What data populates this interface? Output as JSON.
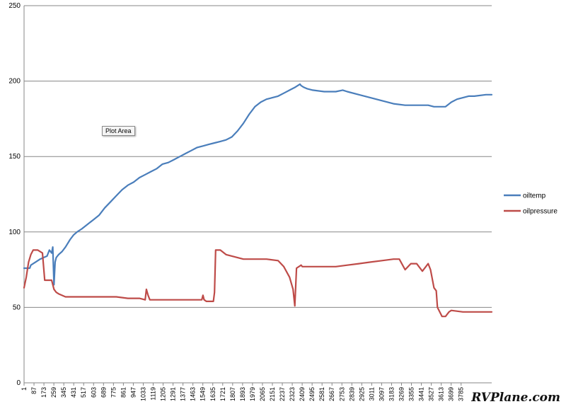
{
  "tooltip": "Plot Area",
  "watermark": "RVPlane.com",
  "chart_data": {
    "type": "line",
    "title": "",
    "xlabel": "",
    "ylabel": "",
    "ylim": [
      0,
      250
    ],
    "yticks": [
      0,
      50,
      100,
      150,
      200,
      250
    ],
    "grid": "horizontal",
    "legend_position": "right",
    "xlim": [
      1,
      4050
    ],
    "xtick_labels": [
      "1",
      "87",
      "173",
      "259",
      "345",
      "431",
      "517",
      "603",
      "689",
      "775",
      "861",
      "947",
      "1033",
      "1119",
      "1205",
      "1291",
      "1377",
      "1463",
      "1549",
      "1635",
      "1721",
      "1807",
      "1893",
      "1979",
      "2065",
      "2151",
      "2237",
      "2323",
      "2409",
      "2495",
      "2581",
      "2667",
      "2753",
      "2839",
      "2925",
      "3011",
      "3097",
      "3183",
      "3269",
      "3355",
      "3441",
      "3527",
      "3613",
      "3699",
      "3785"
    ],
    "series": [
      {
        "name": "oiltemp",
        "color": "#4a7ebb",
        "x": [
          1,
          50,
          60,
          100,
          140,
          170,
          200,
          220,
          240,
          250,
          260,
          270,
          280,
          300,
          330,
          360,
          400,
          430,
          460,
          500,
          550,
          600,
          650,
          700,
          750,
          800,
          850,
          900,
          950,
          1000,
          1050,
          1100,
          1150,
          1200,
          1250,
          1300,
          1350,
          1400,
          1450,
          1500,
          1550,
          1600,
          1650,
          1700,
          1750,
          1800,
          1850,
          1900,
          1950,
          2000,
          2050,
          2100,
          2150,
          2200,
          2250,
          2300,
          2350,
          2390,
          2400,
          2420,
          2450,
          2500,
          2600,
          2700,
          2760,
          2800,
          2900,
          3000,
          3100,
          3200,
          3300,
          3400,
          3500,
          3550,
          3600,
          3650,
          3700,
          3750,
          3800,
          3850,
          3900,
          4000,
          4050
        ],
        "y": [
          76,
          76,
          78,
          80,
          82,
          83,
          84,
          88,
          86,
          90,
          65,
          80,
          83,
          85,
          87,
          90,
          95,
          98,
          100,
          102,
          105,
          108,
          111,
          116,
          120,
          124,
          128,
          131,
          133,
          136,
          138,
          140,
          142,
          145,
          146,
          148,
          150,
          152,
          154,
          156,
          157,
          158,
          159,
          160,
          161,
          163,
          167,
          172,
          178,
          183,
          186,
          188,
          189,
          190,
          192,
          194,
          196,
          198,
          197,
          196,
          195,
          194,
          193,
          193,
          194,
          193,
          191,
          189,
          187,
          185,
          184,
          184,
          184,
          183,
          183,
          183,
          186,
          188,
          189,
          190,
          190,
          191,
          191
        ]
      },
      {
        "name": "oilpressure",
        "color": "#be4b48",
        "x": [
          1,
          20,
          40,
          60,
          80,
          120,
          160,
          180,
          200,
          220,
          240,
          260,
          280,
          300,
          360,
          450,
          600,
          800,
          900,
          1000,
          1050,
          1060,
          1075,
          1090,
          1100,
          1200,
          1300,
          1400,
          1500,
          1540,
          1550,
          1560,
          1580,
          1600,
          1640,
          1650,
          1660,
          1700,
          1750,
          1800,
          1900,
          2000,
          2100,
          2200,
          2250,
          2300,
          2330,
          2345,
          2360,
          2400,
          2410,
          2450,
          2600,
          2700,
          2800,
          2900,
          3000,
          3100,
          3200,
          3250,
          3300,
          3350,
          3400,
          3450,
          3500,
          3520,
          3550,
          3570,
          3580,
          3620,
          3650,
          3680,
          3700,
          3800,
          3900,
          4050
        ],
        "y": [
          63,
          70,
          80,
          85,
          88,
          88,
          86,
          68,
          68,
          68,
          68,
          62,
          60,
          59,
          57,
          57,
          57,
          57,
          56,
          56,
          55,
          62,
          58,
          55,
          55,
          55,
          55,
          55,
          55,
          55,
          58,
          55,
          54,
          54,
          54,
          60,
          88,
          88,
          85,
          84,
          82,
          82,
          82,
          81,
          77,
          70,
          62,
          51,
          76,
          78,
          77,
          77,
          77,
          77,
          78,
          79,
          80,
          81,
          82,
          82,
          75,
          79,
          79,
          74,
          79,
          75,
          63,
          61,
          50,
          44,
          44,
          47,
          48,
          47,
          47,
          47
        ]
      }
    ]
  }
}
